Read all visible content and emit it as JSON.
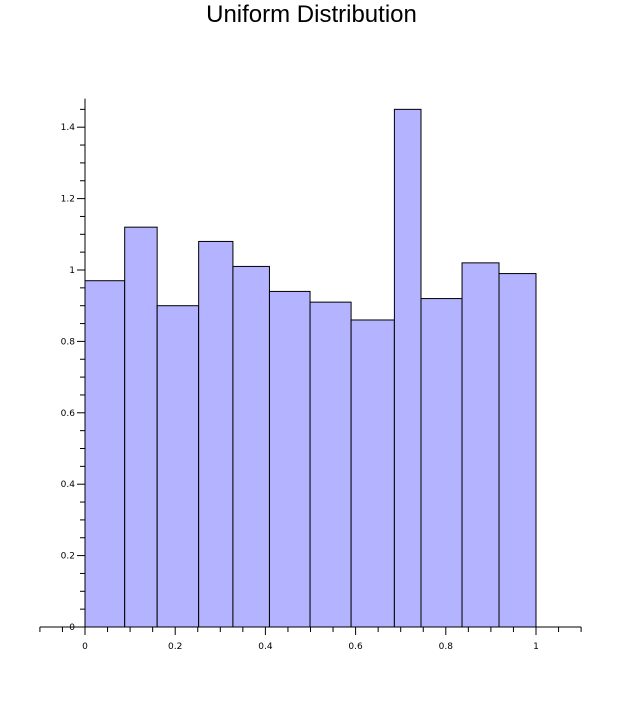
{
  "chart_data": {
    "type": "bar",
    "title": "Uniform Distribution",
    "xlabel": "",
    "ylabel": "",
    "xlim": [
      -0.1,
      1.1
    ],
    "ylim": [
      0,
      1.48
    ],
    "bar_color": "#b3b3ff",
    "edge_color": "#000000",
    "grid": false,
    "bins": [
      {
        "x0": 0.0,
        "x1": 0.088,
        "value": 0.97
      },
      {
        "x0": 0.088,
        "x1": 0.16,
        "value": 1.12
      },
      {
        "x0": 0.16,
        "x1": 0.252,
        "value": 0.9
      },
      {
        "x0": 0.252,
        "x1": 0.328,
        "value": 1.08
      },
      {
        "x0": 0.328,
        "x1": 0.409,
        "value": 1.01
      },
      {
        "x0": 0.409,
        "x1": 0.499,
        "value": 0.94
      },
      {
        "x0": 0.499,
        "x1": 0.59,
        "value": 0.91
      },
      {
        "x0": 0.59,
        "x1": 0.686,
        "value": 0.86
      },
      {
        "x0": 0.686,
        "x1": 0.745,
        "value": 1.45
      },
      {
        "x0": 0.745,
        "x1": 0.836,
        "value": 0.92
      },
      {
        "x0": 0.836,
        "x1": 0.918,
        "value": 1.02
      },
      {
        "x0": 0.918,
        "x1": 1.0,
        "value": 0.99
      }
    ],
    "x_ticks": [
      {
        "value": 0,
        "label": "0"
      },
      {
        "value": 0.2,
        "label": "0.2"
      },
      {
        "value": 0.4,
        "label": "0.4"
      },
      {
        "value": 0.6,
        "label": "0.6"
      },
      {
        "value": 0.8,
        "label": "0.8"
      },
      {
        "value": 1,
        "label": "1"
      }
    ],
    "y_ticks": [
      {
        "value": 0,
        "label": "0"
      },
      {
        "value": 0.2,
        "label": "0.2"
      },
      {
        "value": 0.4,
        "label": "0.4"
      },
      {
        "value": 0.6,
        "label": "0.6"
      },
      {
        "value": 0.8,
        "label": "0.8"
      },
      {
        "value": 1,
        "label": "1"
      },
      {
        "value": 1.2,
        "label": "1.2"
      },
      {
        "value": 1.4,
        "label": "1.4"
      }
    ]
  }
}
